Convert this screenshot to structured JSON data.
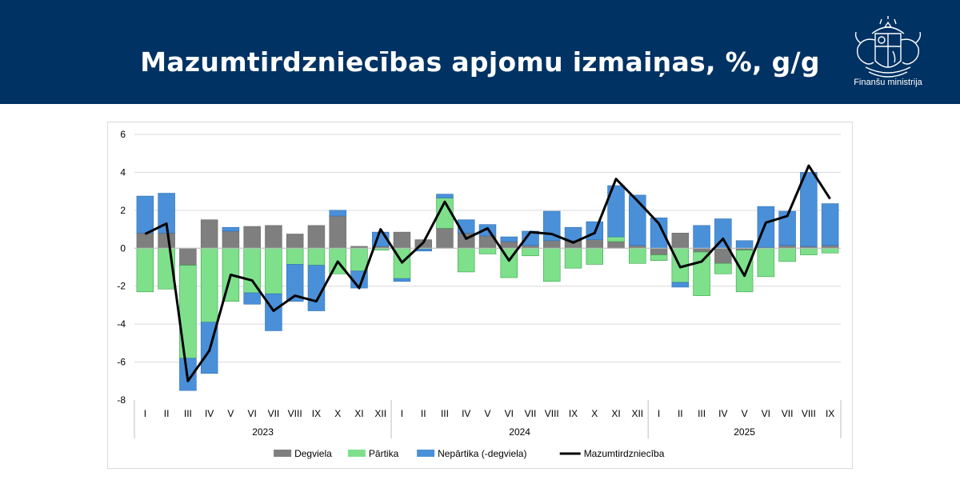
{
  "header": {
    "title": "Mazumtirdzniecības apjomu izmaiņas, %, g/g",
    "org_name": "Finanšu ministrija",
    "background_color": "#003263",
    "logo_icon": "coat-of-arms-icon"
  },
  "chart_data": {
    "type": "bar",
    "stacked": true,
    "categories": [
      "I",
      "II",
      "III",
      "IV",
      "V",
      "VI",
      "VII",
      "VIII",
      "IX",
      "X",
      "XI",
      "XII",
      "I",
      "II",
      "III",
      "IV",
      "V",
      "VI",
      "VII",
      "VIII",
      "IX",
      "X",
      "XI",
      "XII",
      "I",
      "II",
      "III",
      "IV",
      "V",
      "VI",
      "VII",
      "VIII",
      "IX"
    ],
    "years": [
      {
        "label": "2023",
        "start": 0,
        "count": 12
      },
      {
        "label": "2024",
        "start": 12,
        "count": 12
      },
      {
        "label": "2025",
        "start": 24,
        "count": 9
      }
    ],
    "ylim": [
      -8,
      6
    ],
    "yticks": [
      6,
      4,
      2,
      0,
      -2,
      -4,
      -6,
      -8
    ],
    "grid": true,
    "legend_position": "bottom",
    "series": [
      {
        "name": "Degviela",
        "kind": "bar",
        "color": "#7f7f7f",
        "values": [
          0.8,
          0.8,
          -0.9,
          1.5,
          0.9,
          1.15,
          1.2,
          0.75,
          1.2,
          1.7,
          0.1,
          0.1,
          0.85,
          0.45,
          1.05,
          0.8,
          0.65,
          0.35,
          0.15,
          0.4,
          0.4,
          0.45,
          0.35,
          0.15,
          -0.35,
          0.8,
          -0.2,
          -0.8,
          -0.1,
          0.05,
          0.15,
          0.1,
          0.15
        ]
      },
      {
        "name": "Pārtika",
        "kind": "bar",
        "color": "#7ee08b",
        "values": [
          -2.3,
          -2.15,
          -4.9,
          -3.9,
          -2.8,
          -2.35,
          -2.4,
          -0.85,
          -0.9,
          -1.35,
          -1.2,
          -0.1,
          -1.6,
          -0.05,
          1.6,
          -1.25,
          -0.3,
          -1.55,
          -0.4,
          -1.75,
          -1.05,
          -0.85,
          0.25,
          -0.8,
          -0.3,
          -1.8,
          -2.3,
          -0.55,
          -2.2,
          -1.5,
          -0.7,
          -0.35,
          -0.25
        ]
      },
      {
        "name": "Nepārtika (-degviela)",
        "kind": "bar",
        "color": "#4a90d9",
        "values": [
          1.95,
          2.1,
          -1.7,
          -2.7,
          0.2,
          -0.6,
          -1.95,
          -1.95,
          -2.4,
          0.3,
          -0.9,
          0.75,
          -0.15,
          -0.1,
          0.2,
          0.7,
          0.6,
          0.25,
          0.75,
          1.55,
          0.7,
          0.95,
          2.7,
          2.65,
          1.6,
          -0.25,
          1.2,
          1.55,
          0.4,
          2.15,
          1.8,
          3.9,
          2.2
        ]
      },
      {
        "name": "Mazumtirdzniecība",
        "kind": "line",
        "color": "#000000",
        "values": [
          0.75,
          1.3,
          -7.0,
          -5.4,
          -1.4,
          -1.7,
          -3.3,
          -2.5,
          -2.8,
          -0.7,
          -2.1,
          1.0,
          -0.75,
          0.3,
          2.45,
          0.5,
          1.05,
          -0.65,
          0.85,
          0.75,
          0.3,
          0.8,
          3.65,
          2.5,
          1.3,
          -1.0,
          -0.7,
          0.5,
          -1.45,
          1.35,
          1.7,
          4.35,
          2.6
        ]
      }
    ]
  }
}
